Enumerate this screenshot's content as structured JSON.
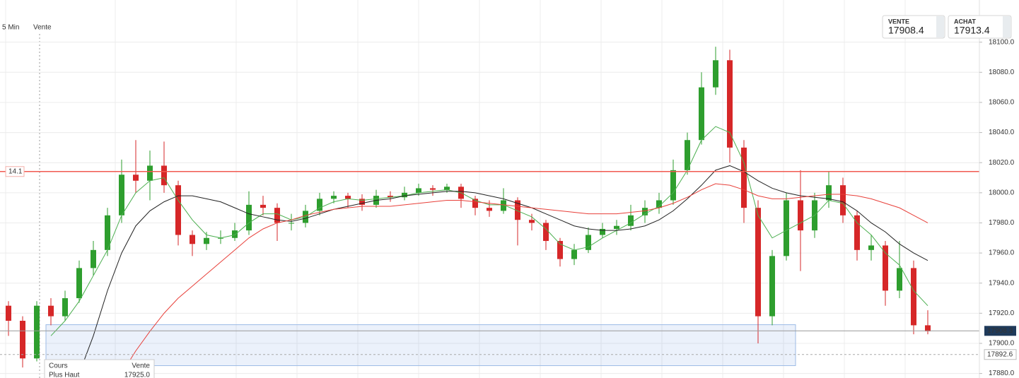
{
  "header": {
    "timeframe": "5 Min",
    "side": "Vente"
  },
  "quotes": {
    "sell_label": "VENTE",
    "sell": 17908.4,
    "buy_label": "ACHAT",
    "buy": 17913.4
  },
  "tooltip": {
    "col1": "Cours",
    "col2": "Vente",
    "row_label": "Plus Haut",
    "row_value": "17925.0"
  },
  "chart_data": {
    "type": "candlestick",
    "ylim": [
      17877,
      18128
    ],
    "yticks": [
      {
        "value": 17880,
        "label": "17880.0"
      },
      {
        "value": 17900,
        "label": "17900.0"
      },
      {
        "value": 17920,
        "label": "17920.0"
      },
      {
        "value": 17940,
        "label": "17940.0"
      },
      {
        "value": 17960,
        "label": "17960.0"
      },
      {
        "value": 17980,
        "label": "17980.0"
      },
      {
        "value": 18000,
        "label": "18000.0"
      },
      {
        "value": 18020,
        "label": "18020.0"
      },
      {
        "value": 18040,
        "label": "18040.0"
      },
      {
        "value": 18060,
        "label": "18060.0"
      },
      {
        "value": 18080,
        "label": "18080.0"
      },
      {
        "value": 18100,
        "label": "18100.0"
      }
    ],
    "grid": true,
    "up_color": "#2e9e2e",
    "down_color": "#d62728",
    "candles": [
      [
        17925,
        17928,
        17905,
        17915
      ],
      [
        17915,
        17918,
        17884,
        17890
      ],
      [
        17890,
        17928,
        17888,
        17925
      ],
      [
        17925,
        17930,
        17912,
        17918
      ],
      [
        17918,
        17935,
        17915,
        17930
      ],
      [
        17930,
        17955,
        17927,
        17950
      ],
      [
        17950,
        17968,
        17945,
        17962
      ],
      [
        17962,
        17990,
        17958,
        17985
      ],
      [
        17985,
        18022,
        17980,
        18012
      ],
      [
        18012,
        18035,
        18000,
        18008
      ],
      [
        18008,
        18028,
        17995,
        18018
      ],
      [
        18018,
        18034,
        18000,
        18005
      ],
      [
        18005,
        18008,
        17965,
        17972
      ],
      [
        17972,
        17975,
        17958,
        17966
      ],
      [
        17966,
        17974,
        17962,
        17970
      ],
      [
        17970,
        17975,
        17966,
        17970
      ],
      [
        17970,
        17980,
        17968,
        17975
      ],
      [
        17975,
        18001,
        17972,
        17992
      ],
      [
        17992,
        17998,
        17985,
        17990
      ],
      [
        17990,
        17993,
        17968,
        17980
      ],
      [
        17980,
        17986,
        17975,
        17980
      ],
      [
        17980,
        17992,
        17977,
        17988
      ],
      [
        17988,
        18000,
        17985,
        17996
      ],
      [
        17996,
        18001,
        17993,
        17998
      ],
      [
        17998,
        18000,
        17990,
        17996
      ],
      [
        17996,
        17999,
        17988,
        17992
      ],
      [
        17992,
        18002,
        17990,
        17998
      ],
      [
        17998,
        18001,
        17994,
        17997
      ],
      [
        17997,
        18004,
        17995,
        18000
      ],
      [
        18000,
        18006,
        17998,
        18003
      ],
      [
        18003,
        18005,
        17998,
        18002
      ],
      [
        18002,
        18006,
        18000,
        18004
      ],
      [
        18004,
        18006,
        17990,
        17996
      ],
      [
        17996,
        17998,
        17985,
        17990
      ],
      [
        17990,
        17995,
        17984,
        17988
      ],
      [
        17988,
        18003,
        17986,
        17995
      ],
      [
        17995,
        17997,
        17965,
        17982
      ],
      [
        17982,
        17986,
        17975,
        17980
      ],
      [
        17980,
        17982,
        17962,
        17968
      ],
      [
        17968,
        17970,
        17951,
        17956
      ],
      [
        17956,
        17966,
        17952,
        17962
      ],
      [
        17962,
        17977,
        17960,
        17972
      ],
      [
        17972,
        17980,
        17970,
        17976
      ],
      [
        17976,
        17982,
        17972,
        17978
      ],
      [
        17978,
        17992,
        17975,
        17985
      ],
      [
        17985,
        17995,
        17980,
        17990
      ],
      [
        17990,
        18000,
        17986,
        17995
      ],
      [
        17995,
        18022,
        17992,
        18015
      ],
      [
        18015,
        18040,
        18012,
        18035
      ],
      [
        18035,
        18080,
        18032,
        18070
      ],
      [
        18070,
        18097,
        18065,
        18088
      ],
      [
        18088,
        18095,
        18020,
        18030
      ],
      [
        18030,
        18035,
        17980,
        17990
      ],
      [
        17990,
        17995,
        17900,
        17918
      ],
      [
        17918,
        17962,
        17912,
        17958
      ],
      [
        17958,
        18000,
        17955,
        17995
      ],
      [
        17995,
        18015,
        17948,
        17975
      ],
      [
        17975,
        18000,
        17970,
        17995
      ],
      [
        17995,
        18014,
        17990,
        18005
      ],
      [
        18005,
        18010,
        17980,
        17985
      ],
      [
        17985,
        17988,
        17955,
        17962
      ],
      [
        17962,
        17972,
        17955,
        17965
      ],
      [
        17965,
        17968,
        17925,
        17935
      ],
      [
        17935,
        17968,
        17930,
        17950
      ],
      [
        17950,
        17955,
        17906,
        17912
      ],
      [
        17912,
        17922,
        17906,
        17908
      ]
    ],
    "series": [
      {
        "color": "#4caf50",
        "values": [
          null,
          null,
          null,
          17905,
          17915,
          17928,
          17945,
          17962,
          17985,
          18000,
          18008,
          18010,
          17995,
          17982,
          17972,
          17970,
          17972,
          17980,
          17986,
          17986,
          17982,
          17984,
          17990,
          17994,
          17996,
          17995,
          17996,
          17997,
          17998,
          18000,
          18001,
          18002,
          18000,
          17995,
          17992,
          17992,
          17988,
          17984,
          17976,
          17966,
          17962,
          17964,
          17970,
          17975,
          17980,
          17986,
          17991,
          18000,
          18015,
          18035,
          18044,
          18040,
          18020,
          17985,
          17970,
          17975,
          17980,
          17985,
          17995,
          17993,
          17980,
          17972,
          17960,
          17952,
          17935,
          17925
        ]
      },
      {
        "color": "#222222",
        "values": [
          null,
          null,
          null,
          null,
          null,
          17880,
          17905,
          17935,
          17960,
          17978,
          17988,
          17994,
          17998,
          17998,
          17996,
          17994,
          17990,
          17986,
          17984,
          17982,
          17981,
          17983,
          17986,
          17989,
          17991,
          17993,
          17995,
          17996,
          17998,
          17999,
          18000,
          18001,
          18001,
          18000,
          17998,
          17996,
          17993,
          17990,
          17986,
          17982,
          17978,
          17976,
          17975,
          17975,
          17976,
          17978,
          17982,
          17988,
          17996,
          18005,
          18015,
          18018,
          18014,
          18008,
          18003,
          18000,
          17998,
          17997,
          17996,
          17994,
          17988,
          17980,
          17974,
          17966,
          17960,
          17955
        ]
      },
      {
        "color": "#e8403a",
        "values": [
          null,
          null,
          null,
          null,
          null,
          null,
          null,
          null,
          17880,
          17895,
          17908,
          17920,
          17930,
          17938,
          17946,
          17954,
          17962,
          17970,
          17976,
          17980,
          17982,
          17985,
          17987,
          17989,
          17990,
          17991,
          17991,
          17991,
          17992,
          17993,
          17994,
          17995,
          17995,
          17994,
          17993,
          17992,
          17991,
          17990,
          17989,
          17988,
          17987,
          17986,
          17986,
          17986,
          17987,
          17988,
          17990,
          17993,
          17997,
          18002,
          18006,
          18005,
          18002,
          17998,
          17996,
          17996,
          17997,
          17998,
          17999,
          17999,
          17998,
          17996,
          17993,
          17990,
          17985,
          17980
        ]
      }
    ],
    "level": {
      "value": 18014.1,
      "label": "14.1",
      "color": "#f05a50"
    },
    "current_price": 17908.3,
    "alert_price": 17892.6,
    "zone": {
      "high": 17912.4,
      "low": 17885.2
    }
  }
}
